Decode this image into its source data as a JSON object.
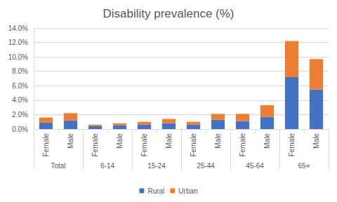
{
  "chart_data": {
    "type": "bar",
    "title": "Disability prevalence (%)",
    "categories": [
      "Female",
      "Male",
      "Female",
      "Male",
      "Female",
      "Male",
      "Female",
      "Male",
      "Female",
      "Male",
      "Female",
      "Male"
    ],
    "category_groups": [
      "Total",
      "6-14",
      "15-24",
      "25-44",
      "45-64",
      "65+"
    ],
    "series": [
      {
        "name": "Rural",
        "color": "#4472c4",
        "values": [
          0.9,
          1.2,
          0.4,
          0.5,
          0.6,
          0.8,
          0.6,
          1.3,
          1.1,
          1.7,
          7.2,
          5.5
        ]
      },
      {
        "name": "Urban",
        "color": "#ed7d31",
        "values": [
          0.7,
          1.0,
          0.2,
          0.3,
          0.4,
          0.6,
          0.4,
          0.8,
          1.0,
          1.6,
          5.0,
          4.2
        ]
      }
    ],
    "ylim": [
      0,
      14
    ],
    "yticks": [
      {
        "value": 0,
        "label": "0.0%"
      },
      {
        "value": 2,
        "label": "2.0%"
      },
      {
        "value": 4,
        "label": "4.0%"
      },
      {
        "value": 6,
        "label": "6.0%"
      },
      {
        "value": 8,
        "label": "8.0%"
      },
      {
        "value": 10,
        "label": "10.0%"
      },
      {
        "value": 12,
        "label": "12.0%"
      },
      {
        "value": 14,
        "label": "14.0%"
      }
    ],
    "stacked": true,
    "grid": true,
    "legend": "bottom"
  }
}
